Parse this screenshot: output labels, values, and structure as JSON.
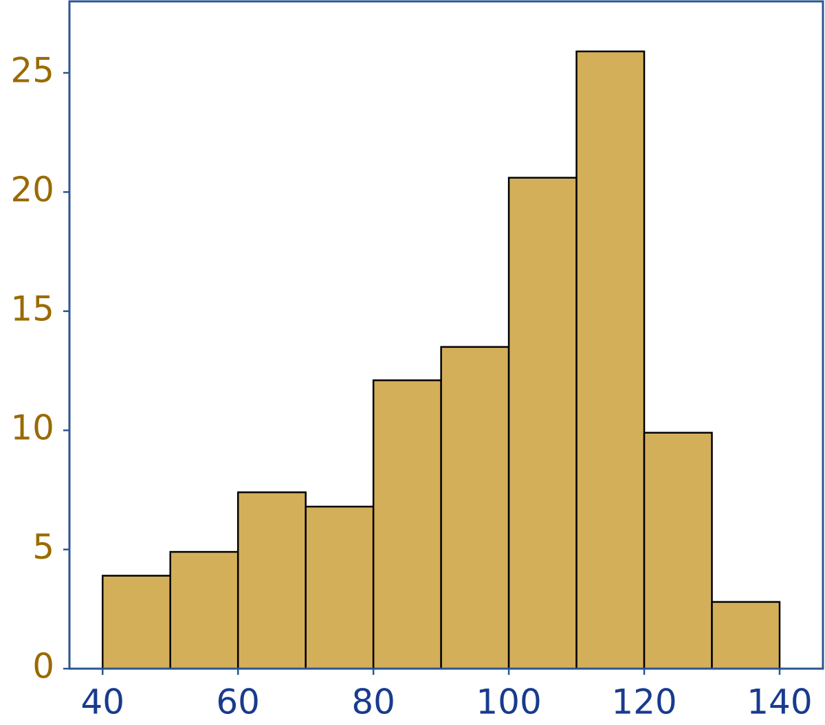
{
  "chart_data": {
    "type": "histogram",
    "bins": [
      40,
      50,
      60,
      70,
      80,
      90,
      100,
      110,
      120,
      130,
      140
    ],
    "values": [
      3.9,
      4.9,
      7.4,
      6.8,
      12.1,
      13.5,
      20.6,
      25.9,
      9.9,
      2.8
    ],
    "color": "#d4af5a",
    "edge_color": "#000000",
    "xlim": [
      35.1,
      146.4
    ],
    "xticks": [
      40,
      60,
      80,
      100,
      120,
      140
    ],
    "ylim": [
      0,
      28
    ],
    "yticks": [
      0,
      5,
      10,
      15,
      20,
      25
    ],
    "x_tick_color": "#183b8e",
    "y_tick_color": "#9a6a00",
    "spine_color": "#2b5592"
  }
}
